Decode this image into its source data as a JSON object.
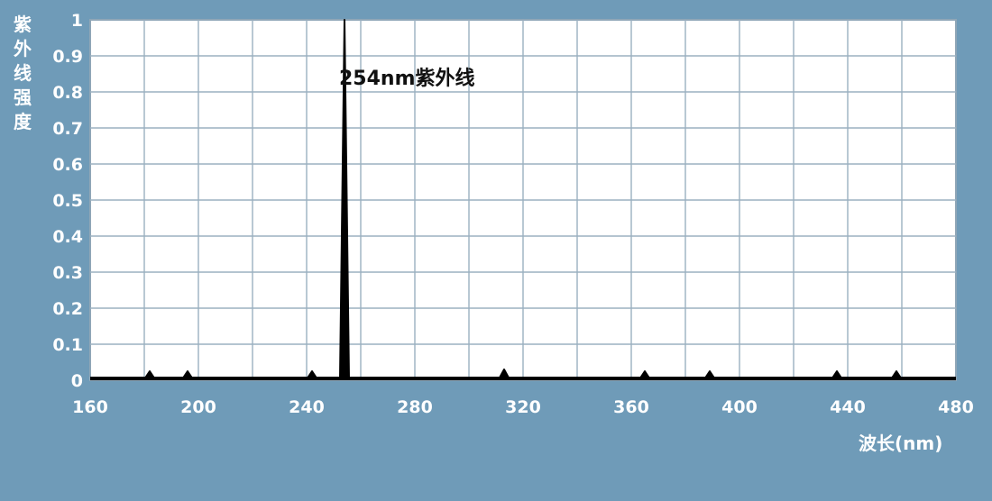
{
  "chart_data": {
    "type": "line",
    "ylabel": "紫外线强度",
    "xlabel": "波长(nm)",
    "xlim": [
      160,
      480
    ],
    "ylim": [
      0,
      1
    ],
    "x_ticks": [
      "160",
      "200",
      "240",
      "280",
      "320",
      "360",
      "400",
      "440",
      "480"
    ],
    "y_ticks": [
      "0",
      "0.1",
      "0.2",
      "0.3",
      "0.4",
      "0.5",
      "0.6",
      "0.7",
      "0.8",
      "0.9",
      "1"
    ],
    "grid": true,
    "annotation": {
      "text": "254nm紫外线",
      "x": 254,
      "y": 0.86
    },
    "series": [
      {
        "color": "#000000",
        "x": [
          160,
          182,
          196,
          242,
          254,
          313,
          365,
          389,
          436,
          458,
          480
        ],
        "y": [
          0,
          0.02,
          0.02,
          0.02,
          1.0,
          0.03,
          0.02,
          0.015,
          0.025,
          0.025,
          0
        ]
      }
    ]
  }
}
